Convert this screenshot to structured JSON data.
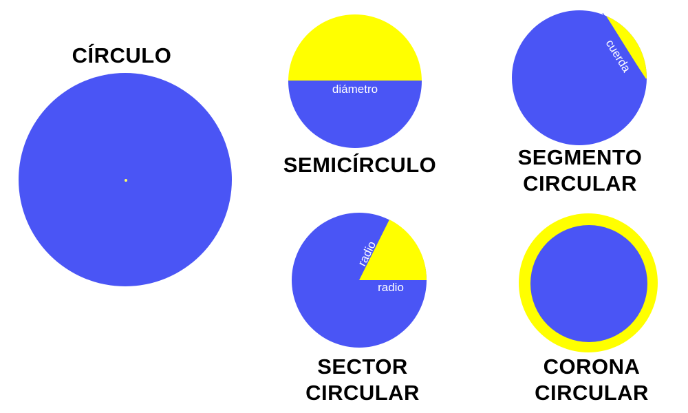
{
  "colors": {
    "blue": "#4a55f5",
    "yellow": "#ffff00",
    "background": "#ffffff"
  },
  "circulo": {
    "title": "CÍRCULO"
  },
  "semicirculo": {
    "title": "SEMICÍRCULO",
    "label_diametro": "diámetro"
  },
  "segmento": {
    "title_line1": "SEGMENTO",
    "title_line2": "CIRCULAR",
    "label_cuerda": "cuerda"
  },
  "sector": {
    "title_line1": "SECTOR",
    "title_line2": "CIRCULAR",
    "label_radio_1": "radio",
    "label_radio_2": "radio"
  },
  "corona": {
    "title_line1": "CORONA",
    "title_line2": "CIRCULAR"
  }
}
